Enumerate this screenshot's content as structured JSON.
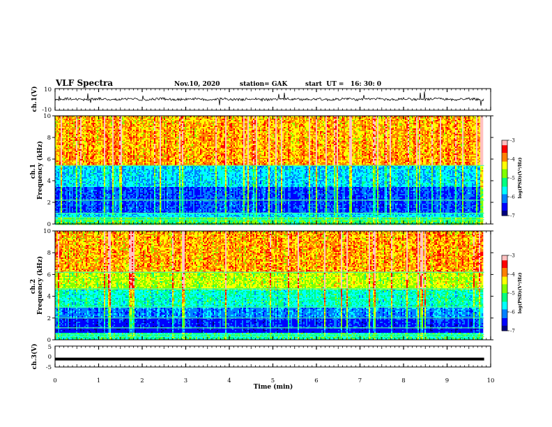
{
  "header": {
    "title": "VLF Spectra",
    "date": "Nov.10, 2020",
    "station": "station= GAK",
    "start": "start  UT =   16: 30: 0"
  },
  "chart_data": [
    {
      "type": "line",
      "name": "ch1-waveform",
      "ylabel": "ch.1(V)",
      "ylim": [
        -10,
        10
      ],
      "yticks": [
        "10",
        "-10"
      ],
      "xlim": [
        0,
        10
      ],
      "note_values": "noisy trace around +4 V with spikes"
    },
    {
      "type": "heatmap",
      "name": "ch1-spectrogram",
      "ylabel": "ch.1\nFrequency (kHz)",
      "ylabel_line1": "ch.1",
      "ylabel_line2": "Frequency (kHz)",
      "ylim": [
        0,
        10
      ],
      "yticks": [
        "0",
        "2",
        "4",
        "6",
        "8",
        "10"
      ],
      "xlim": [
        0,
        9.85
      ],
      "colorbar": {
        "label": "log(PSD)(V²/Hz)",
        "ticks": [
          "-3",
          "-4",
          "-5",
          "-6",
          "-7"
        ],
        "range": [
          -7,
          -3
        ]
      }
    },
    {
      "type": "heatmap",
      "name": "ch2-spectrogram",
      "ylabel_line1": "ch.2",
      "ylabel_line2": "Frequency (kHz)",
      "ylim": [
        0,
        10
      ],
      "yticks": [
        "0",
        "2",
        "4",
        "6",
        "8",
        "10"
      ],
      "xlim": [
        0,
        9.85
      ],
      "colorbar": {
        "label": "log(PSD)(V²/Hz)",
        "ticks": [
          "-3",
          "-4",
          "-5",
          "-6",
          "-7"
        ],
        "range": [
          -7,
          -3
        ]
      }
    },
    {
      "type": "line",
      "name": "ch3-waveform",
      "ylabel": "ch.3(V)",
      "ylim": [
        -5,
        5
      ],
      "yticks": [
        "5",
        "0",
        "-5"
      ],
      "xlim": [
        0,
        10
      ],
      "level": -1.2
    }
  ],
  "xaxis": {
    "label": "Time (min)",
    "ticks": [
      "0",
      "1",
      "2",
      "3",
      "4",
      "5",
      "6",
      "7",
      "8",
      "9",
      "10"
    ],
    "range": [
      0,
      10
    ]
  },
  "colors": {
    "colormap": [
      "#000080",
      "#0000ff",
      "#0080ff",
      "#00ffff",
      "#00ff80",
      "#80ff00",
      "#ffff00",
      "#ff8000",
      "#ff0000",
      "#ffc0c0"
    ]
  }
}
